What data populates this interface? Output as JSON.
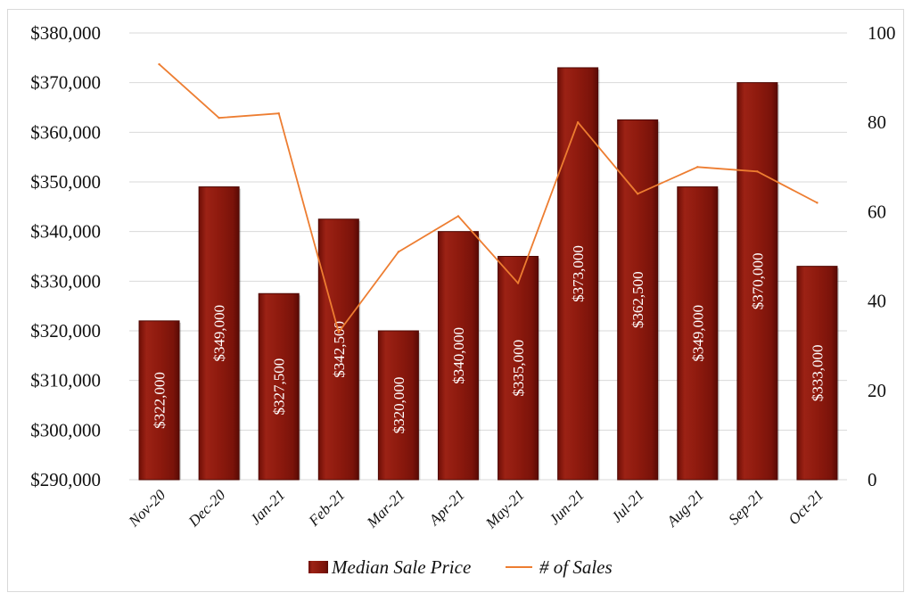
{
  "chart_data": {
    "type": "bar",
    "categories": [
      "Nov-20",
      "Dec-20",
      "Jan-21",
      "Feb-21",
      "Mar-21",
      "Apr-21",
      "May-21",
      "Jun-21",
      "Jul-21",
      "Aug-21",
      "Sep-21",
      "Oct-21"
    ],
    "series": [
      {
        "name": "Median Sale Price",
        "type": "bar",
        "axis": "left",
        "color": "#8e1a0e",
        "values": [
          322000,
          349000,
          327500,
          342500,
          320000,
          340000,
          335000,
          373000,
          362500,
          349000,
          370000,
          333000
        ],
        "labels": [
          "$322,000",
          "$349,000",
          "$327,500",
          "$342,500",
          "$320,000",
          "$340,000",
          "$335,000",
          "$373,000",
          "$362,500",
          "$349,000",
          "$370,000",
          "$333,000"
        ]
      },
      {
        "name": "# of Sales",
        "type": "line",
        "axis": "right",
        "color": "#ed7d31",
        "values": [
          93,
          81,
          82,
          33,
          51,
          59,
          44,
          80,
          64,
          70,
          69,
          62
        ]
      }
    ],
    "y_left": {
      "ylim": [
        290000,
        380000
      ],
      "ticks": [
        290000,
        300000,
        310000,
        320000,
        330000,
        340000,
        350000,
        360000,
        370000,
        380000
      ],
      "tick_labels": [
        "$290,000",
        "$300,000",
        "$310,000",
        "$320,000",
        "$330,000",
        "$340,000",
        "$350,000",
        "$360,000",
        "$370,000",
        "$380,000"
      ]
    },
    "y_right": {
      "ylim": [
        0,
        100
      ],
      "ticks": [
        0,
        20,
        40,
        60,
        80,
        100
      ],
      "tick_labels": [
        "0",
        "20",
        "40",
        "60",
        "80",
        "100"
      ]
    },
    "title": "",
    "xlabel": "",
    "grid": true,
    "legend_position": "bottom"
  }
}
